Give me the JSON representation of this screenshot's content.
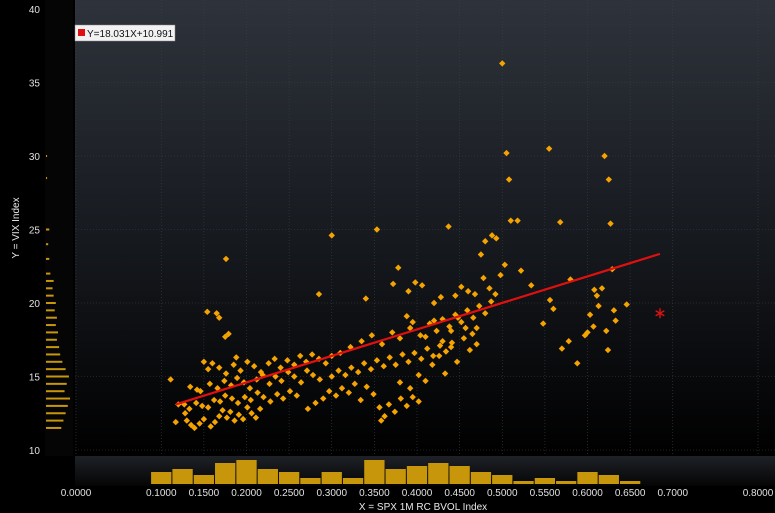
{
  "chart_data": {
    "type": "scatter",
    "xlabel": "X = SPX 1M RC BVOL Index",
    "ylabel": "Y = VIX Index",
    "xlim": [
      0.0,
      0.8
    ],
    "ylim": [
      10,
      40
    ],
    "x_ticks": [
      "0.0000",
      "0.1000",
      "0.1500",
      "0.2000",
      "0.2500",
      "0.3000",
      "0.3500",
      "0.4000",
      "0.4500",
      "0.5000",
      "0.5500",
      "0.6000",
      "0.6500",
      "0.7000",
      "0.8000"
    ],
    "y_ticks": [
      "10",
      "15",
      "20",
      "25",
      "30",
      "35",
      "40"
    ],
    "legend": "Y=18.031X+10.991",
    "regression": {
      "slope": 18.031,
      "intercept": 10.991,
      "x_range": [
        0.0,
        0.7
      ]
    },
    "current_point": {
      "x": 0.685,
      "y": 19.3
    },
    "colors": {
      "points": "#f5a300",
      "line": "#e01010",
      "current": "#e01010",
      "histogram": "#c8960a",
      "background_top": "#2a2e35",
      "background_bottom": "#000000"
    },
    "points": [
      [
        0.117,
        11.9
      ],
      [
        0.13,
        12.0
      ],
      [
        0.128,
        12.5
      ],
      [
        0.135,
        11.7
      ],
      [
        0.139,
        11.5
      ],
      [
        0.145,
        11.8
      ],
      [
        0.15,
        12.1
      ],
      [
        0.158,
        11.6
      ],
      [
        0.163,
        11.9
      ],
      [
        0.168,
        12.3
      ],
      [
        0.172,
        12.7
      ],
      [
        0.177,
        12.2
      ],
      [
        0.181,
        12.6
      ],
      [
        0.186,
        12.0
      ],
      [
        0.191,
        12.4
      ],
      [
        0.196,
        12.1
      ],
      [
        0.201,
        12.9
      ],
      [
        0.206,
        12.5
      ],
      [
        0.211,
        12.2
      ],
      [
        0.216,
        12.8
      ],
      [
        0.12,
        13.1
      ],
      [
        0.127,
        13.1
      ],
      [
        0.133,
        12.8
      ],
      [
        0.141,
        13.2
      ],
      [
        0.148,
        13.0
      ],
      [
        0.155,
        12.9
      ],
      [
        0.162,
        13.4
      ],
      [
        0.169,
        13.3
      ],
      [
        0.175,
        13.7
      ],
      [
        0.183,
        13.5
      ],
      [
        0.19,
        13.2
      ],
      [
        0.198,
        13.6
      ],
      [
        0.205,
        13.4
      ],
      [
        0.213,
        13.9
      ],
      [
        0.22,
        13.6
      ],
      [
        0.228,
        13.3
      ],
      [
        0.236,
        13.8
      ],
      [
        0.243,
        13.5
      ],
      [
        0.251,
        14.0
      ],
      [
        0.259,
        13.7
      ],
      [
        0.134,
        14.3
      ],
      [
        0.146,
        14.0
      ],
      [
        0.157,
        14.5
      ],
      [
        0.166,
        14.2
      ],
      [
        0.174,
        14.7
      ],
      [
        0.182,
        14.4
      ],
      [
        0.189,
        14.9
      ],
      [
        0.197,
        14.6
      ],
      [
        0.204,
        14.2
      ],
      [
        0.212,
        14.8
      ],
      [
        0.219,
        15.1
      ],
      [
        0.227,
        14.5
      ],
      [
        0.234,
        15.0
      ],
      [
        0.241,
        14.7
      ],
      [
        0.249,
        15.3
      ],
      [
        0.256,
        15.0
      ],
      [
        0.264,
        14.6
      ],
      [
        0.271,
        15.4
      ],
      [
        0.278,
        15.1
      ],
      [
        0.286,
        14.8
      ],
      [
        0.155,
        15.5
      ],
      [
        0.16,
        15.9
      ],
      [
        0.168,
        15.6
      ],
      [
        0.176,
        15.2
      ],
      [
        0.185,
        15.8
      ],
      [
        0.193,
        15.4
      ],
      [
        0.201,
        16.0
      ],
      [
        0.209,
        15.7
      ],
      [
        0.217,
        15.3
      ],
      [
        0.226,
        15.9
      ],
      [
        0.233,
        16.2
      ],
      [
        0.24,
        15.6
      ],
      [
        0.248,
        16.1
      ],
      [
        0.256,
        15.8
      ],
      [
        0.263,
        16.4
      ],
      [
        0.27,
        16.0
      ],
      [
        0.277,
        16.5
      ],
      [
        0.285,
        16.2
      ],
      [
        0.293,
        15.9
      ],
      [
        0.3,
        16.4
      ],
      [
        0.111,
        14.8
      ],
      [
        0.142,
        14.1
      ],
      [
        0.15,
        16.0
      ],
      [
        0.165,
        19.3
      ],
      [
        0.168,
        19.0
      ],
      [
        0.175,
        17.7
      ],
      [
        0.176,
        23.0
      ],
      [
        0.179,
        17.9
      ],
      [
        0.154,
        19.4
      ],
      [
        0.188,
        16.3
      ],
      [
        0.272,
        12.8
      ],
      [
        0.281,
        13.2
      ],
      [
        0.29,
        13.5
      ],
      [
        0.297,
        14.0
      ],
      [
        0.305,
        13.7
      ],
      [
        0.312,
        14.2
      ],
      [
        0.32,
        13.9
      ],
      [
        0.327,
        14.5
      ],
      [
        0.334,
        13.4
      ],
      [
        0.341,
        14.3
      ],
      [
        0.349,
        13.8
      ],
      [
        0.356,
        12.9
      ],
      [
        0.362,
        12.3
      ],
      [
        0.358,
        12.0
      ],
      [
        0.367,
        13.1
      ],
      [
        0.374,
        12.6
      ],
      [
        0.381,
        13.5
      ],
      [
        0.388,
        13.0
      ],
      [
        0.395,
        13.6
      ],
      [
        0.402,
        13.3
      ],
      [
        0.3,
        15.0
      ],
      [
        0.308,
        15.4
      ],
      [
        0.316,
        15.1
      ],
      [
        0.323,
        15.6
      ],
      [
        0.331,
        15.3
      ],
      [
        0.338,
        15.9
      ],
      [
        0.346,
        15.5
      ],
      [
        0.353,
        16.1
      ],
      [
        0.361,
        15.7
      ],
      [
        0.368,
        16.3
      ],
      [
        0.375,
        15.8
      ],
      [
        0.383,
        16.5
      ],
      [
        0.39,
        16.0
      ],
      [
        0.397,
        16.6
      ],
      [
        0.405,
        16.2
      ],
      [
        0.412,
        16.9
      ],
      [
        0.419,
        16.4
      ],
      [
        0.427,
        17.1
      ],
      [
        0.434,
        16.7
      ],
      [
        0.441,
        17.3
      ],
      [
        0.31,
        16.6
      ],
      [
        0.322,
        17.0
      ],
      [
        0.335,
        17.4
      ],
      [
        0.347,
        17.8
      ],
      [
        0.359,
        17.2
      ],
      [
        0.371,
        18.0
      ],
      [
        0.38,
        17.6
      ],
      [
        0.392,
        18.3
      ],
      [
        0.404,
        17.8
      ],
      [
        0.415,
        18.6
      ],
      [
        0.423,
        18.1
      ],
      [
        0.43,
        18.9
      ],
      [
        0.438,
        18.4
      ],
      [
        0.445,
        19.2
      ],
      [
        0.452,
        18.7
      ],
      [
        0.459,
        19.5
      ],
      [
        0.466,
        19.0
      ],
      [
        0.473,
        19.8
      ],
      [
        0.48,
        19.3
      ],
      [
        0.487,
        20.1
      ],
      [
        0.285,
        20.6
      ],
      [
        0.3,
        24.6
      ],
      [
        0.34,
        20.3
      ],
      [
        0.353,
        25.0
      ],
      [
        0.372,
        21.3
      ],
      [
        0.378,
        22.4
      ],
      [
        0.39,
        20.8
      ],
      [
        0.398,
        21.4
      ],
      [
        0.406,
        21.2
      ],
      [
        0.42,
        20.0
      ],
      [
        0.428,
        20.4
      ],
      [
        0.437,
        25.2
      ],
      [
        0.445,
        20.5
      ],
      [
        0.452,
        21.1
      ],
      [
        0.46,
        20.8
      ],
      [
        0.468,
        20.6
      ],
      [
        0.475,
        23.3
      ],
      [
        0.48,
        24.2
      ],
      [
        0.488,
        24.6
      ],
      [
        0.493,
        24.4
      ],
      [
        0.478,
        21.7
      ],
      [
        0.485,
        21.0
      ],
      [
        0.492,
        20.6
      ],
      [
        0.498,
        21.9
      ],
      [
        0.503,
        22.6
      ],
      [
        0.5,
        36.3
      ],
      [
        0.505,
        30.2
      ],
      [
        0.508,
        28.4
      ],
      [
        0.51,
        25.6
      ],
      [
        0.518,
        25.6
      ],
      [
        0.522,
        22.2
      ],
      [
        0.534,
        21.2
      ],
      [
        0.555,
        30.5
      ],
      [
        0.56,
        19.6
      ],
      [
        0.568,
        25.5
      ],
      [
        0.548,
        18.6
      ],
      [
        0.57,
        16.9
      ],
      [
        0.578,
        17.4
      ],
      [
        0.588,
        15.9
      ],
      [
        0.597,
        17.8
      ],
      [
        0.6,
        18.0
      ],
      [
        0.603,
        19.2
      ],
      [
        0.607,
        18.4
      ],
      [
        0.611,
        20.5
      ],
      [
        0.613,
        19.8
      ],
      [
        0.617,
        21.0
      ],
      [
        0.62,
        30.0
      ],
      [
        0.622,
        18.1
      ],
      [
        0.624,
        16.8
      ],
      [
        0.625,
        28.4
      ],
      [
        0.627,
        25.4
      ],
      [
        0.629,
        22.3
      ],
      [
        0.631,
        19.5
      ],
      [
        0.633,
        18.8
      ],
      [
        0.646,
        19.9
      ],
      [
        0.608,
        20.9
      ],
      [
        0.556,
        20.2
      ],
      [
        0.58,
        21.6
      ],
      [
        0.465,
        17.9
      ],
      [
        0.47,
        18.3
      ],
      [
        0.402,
        15.1
      ],
      [
        0.41,
        14.7
      ],
      [
        0.418,
        15.8
      ],
      [
        0.426,
        16.4
      ],
      [
        0.433,
        15.2
      ],
      [
        0.44,
        17.0
      ],
      [
        0.447,
        16.0
      ],
      [
        0.455,
        17.6
      ],
      [
        0.462,
        16.8
      ],
      [
        0.47,
        17.2
      ],
      [
        0.41,
        17.7
      ],
      [
        0.42,
        18.8
      ],
      [
        0.43,
        17.4
      ],
      [
        0.44,
        18.1
      ],
      [
        0.448,
        19.0
      ],
      [
        0.457,
        18.3
      ],
      [
        0.388,
        19.1
      ],
      [
        0.395,
        18.7
      ],
      [
        0.38,
        14.6
      ],
      [
        0.392,
        14.2
      ]
    ],
    "histogram_x": {
      "bins": [
        0.1,
        0.125,
        0.15,
        0.175,
        0.2,
        0.225,
        0.25,
        0.275,
        0.3,
        0.325,
        0.35,
        0.375,
        0.4,
        0.425,
        0.45,
        0.475,
        0.5,
        0.525,
        0.55,
        0.575,
        0.6,
        0.625,
        0.65
      ],
      "counts": [
        4,
        5,
        3,
        7,
        8,
        5,
        4,
        2,
        4,
        2,
        8,
        5,
        6,
        7,
        6,
        4,
        3,
        1,
        2,
        1,
        4,
        3,
        1
      ]
    },
    "histogram_y": {
      "bins": [
        11.5,
        12.0,
        12.5,
        13.0,
        13.5,
        14.0,
        14.5,
        15.0,
        15.5,
        16.0,
        16.5,
        17.0,
        17.5,
        18.0,
        18.5,
        19.0,
        19.5,
        20.0,
        20.5,
        21.0,
        21.5,
        22.0,
        23.0,
        24.0,
        25.0,
        28.5,
        30.0
      ],
      "counts": [
        14,
        16,
        18,
        20,
        22,
        17,
        19,
        21,
        18,
        15,
        13,
        12,
        10,
        11,
        9,
        10,
        8,
        9,
        7,
        6,
        7,
        4,
        3,
        2,
        3,
        1,
        1
      ]
    }
  }
}
